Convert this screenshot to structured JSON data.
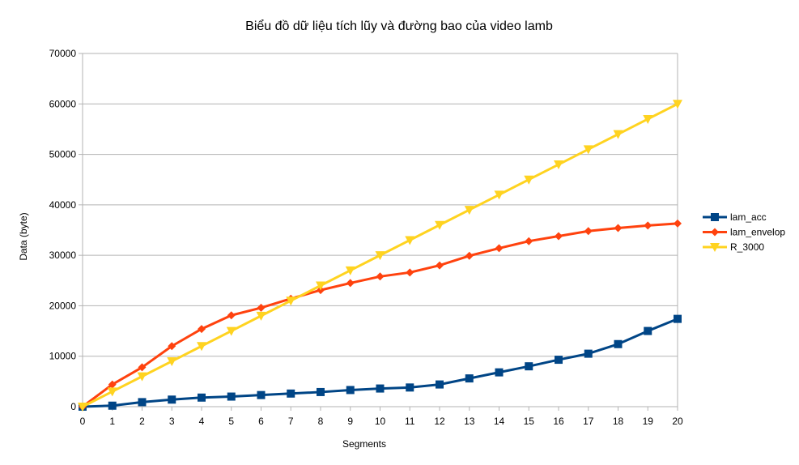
{
  "chart_data": {
    "type": "line",
    "title": "Biểu đồ dữ liệu tích lũy và đường bao của video lamb",
    "xlabel": "Segments",
    "ylabel": "Data (byte)",
    "x": [
      0,
      1,
      2,
      3,
      4,
      5,
      6,
      7,
      8,
      9,
      10,
      11,
      12,
      13,
      14,
      15,
      16,
      17,
      18,
      19,
      20
    ],
    "x_ticks": [
      "0",
      "1",
      "2",
      "3",
      "4",
      "5",
      "6",
      "7",
      "8",
      "9",
      "10",
      "11",
      "12",
      "13",
      "14",
      "15",
      "16",
      "17",
      "18",
      "19",
      "20"
    ],
    "ylim": [
      0,
      70000
    ],
    "y_ticks": [
      "0",
      "10000",
      "20000",
      "30000",
      "40000",
      "50000",
      "60000",
      "70000"
    ],
    "grid": "horizontal",
    "legend_position": "right",
    "series": [
      {
        "name": "lam_acc",
        "color": "#004586",
        "marker": "square",
        "values": [
          0,
          200,
          900,
          1400,
          1800,
          2000,
          2300,
          2600,
          2900,
          3300,
          3600,
          3800,
          4400,
          5600,
          6800,
          8000,
          9300,
          10500,
          12400,
          15000,
          17400
        ]
      },
      {
        "name": "lam_envelop",
        "color": "#ff420e",
        "marker": "diamond",
        "values": [
          0,
          4400,
          7800,
          12000,
          15400,
          18100,
          19600,
          21400,
          23100,
          24500,
          25800,
          26600,
          28000,
          29900,
          31400,
          32800,
          33800,
          34800,
          35400,
          35900,
          36300
        ]
      },
      {
        "name": "R_3000",
        "color": "#ffd320",
        "marker": "triangle-down",
        "values": [
          0,
          3000,
          6000,
          9000,
          12000,
          15000,
          18000,
          21000,
          24000,
          27000,
          30000,
          33000,
          36000,
          39000,
          42000,
          45000,
          48000,
          51000,
          54000,
          57000,
          60000
        ]
      }
    ]
  }
}
